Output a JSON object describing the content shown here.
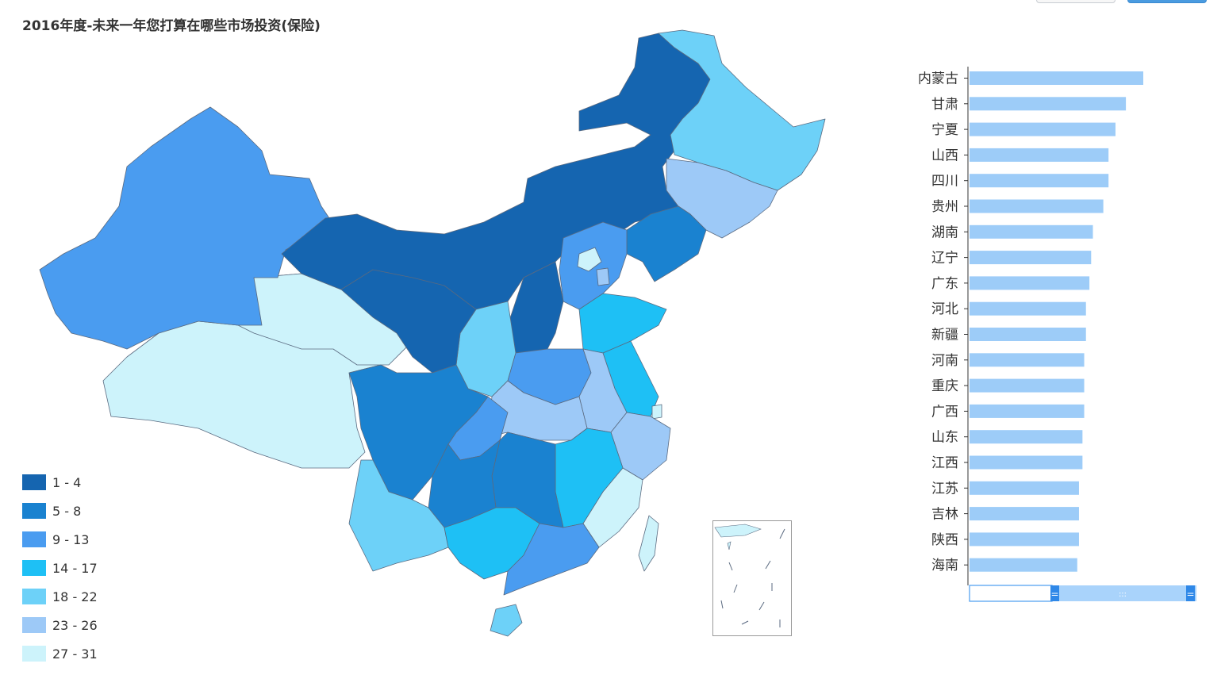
{
  "title": "2016年度-未来一年您打算在哪些市场投资(保险)",
  "legend": [
    {
      "label": "1 - 4",
      "color": "#1565b0"
    },
    {
      "label": "5 - 8",
      "color": "#1a82d0"
    },
    {
      "label": "9 - 13",
      "color": "#4a9cf0"
    },
    {
      "label": "14 - 17",
      "color": "#1ec0f5"
    },
    {
      "label": "18 - 22",
      "color": "#6dd1f8"
    },
    {
      "label": "23 - 26",
      "color": "#9dc9f7"
    },
    {
      "label": "27 - 31",
      "color": "#cdf3fb"
    }
  ],
  "chart_data": [
    {
      "type": "map",
      "title": "2016年度-未来一年您打算在哪些市场投资(保险)",
      "legend_placement": "bottom-left"
    },
    {
      "type": "bar",
      "orientation": "horizontal",
      "categories": [
        "内蒙古",
        "甘肃",
        "宁夏",
        "山西",
        "四川",
        "贵州",
        "湖南",
        "辽宁",
        "广东",
        "河北",
        "新疆",
        "河南",
        "重庆",
        "广西",
        "山东",
        "江西",
        "江苏",
        "吉林",
        "陕西",
        "海南"
      ],
      "values": [
        100,
        90,
        84,
        80,
        80,
        77,
        71,
        70,
        69,
        67,
        67,
        66,
        66,
        66,
        65,
        65,
        63,
        63,
        63,
        62
      ],
      "xlim": [
        0,
        100
      ],
      "bar_color": "#9dccf8",
      "scrollbar": true
    }
  ]
}
